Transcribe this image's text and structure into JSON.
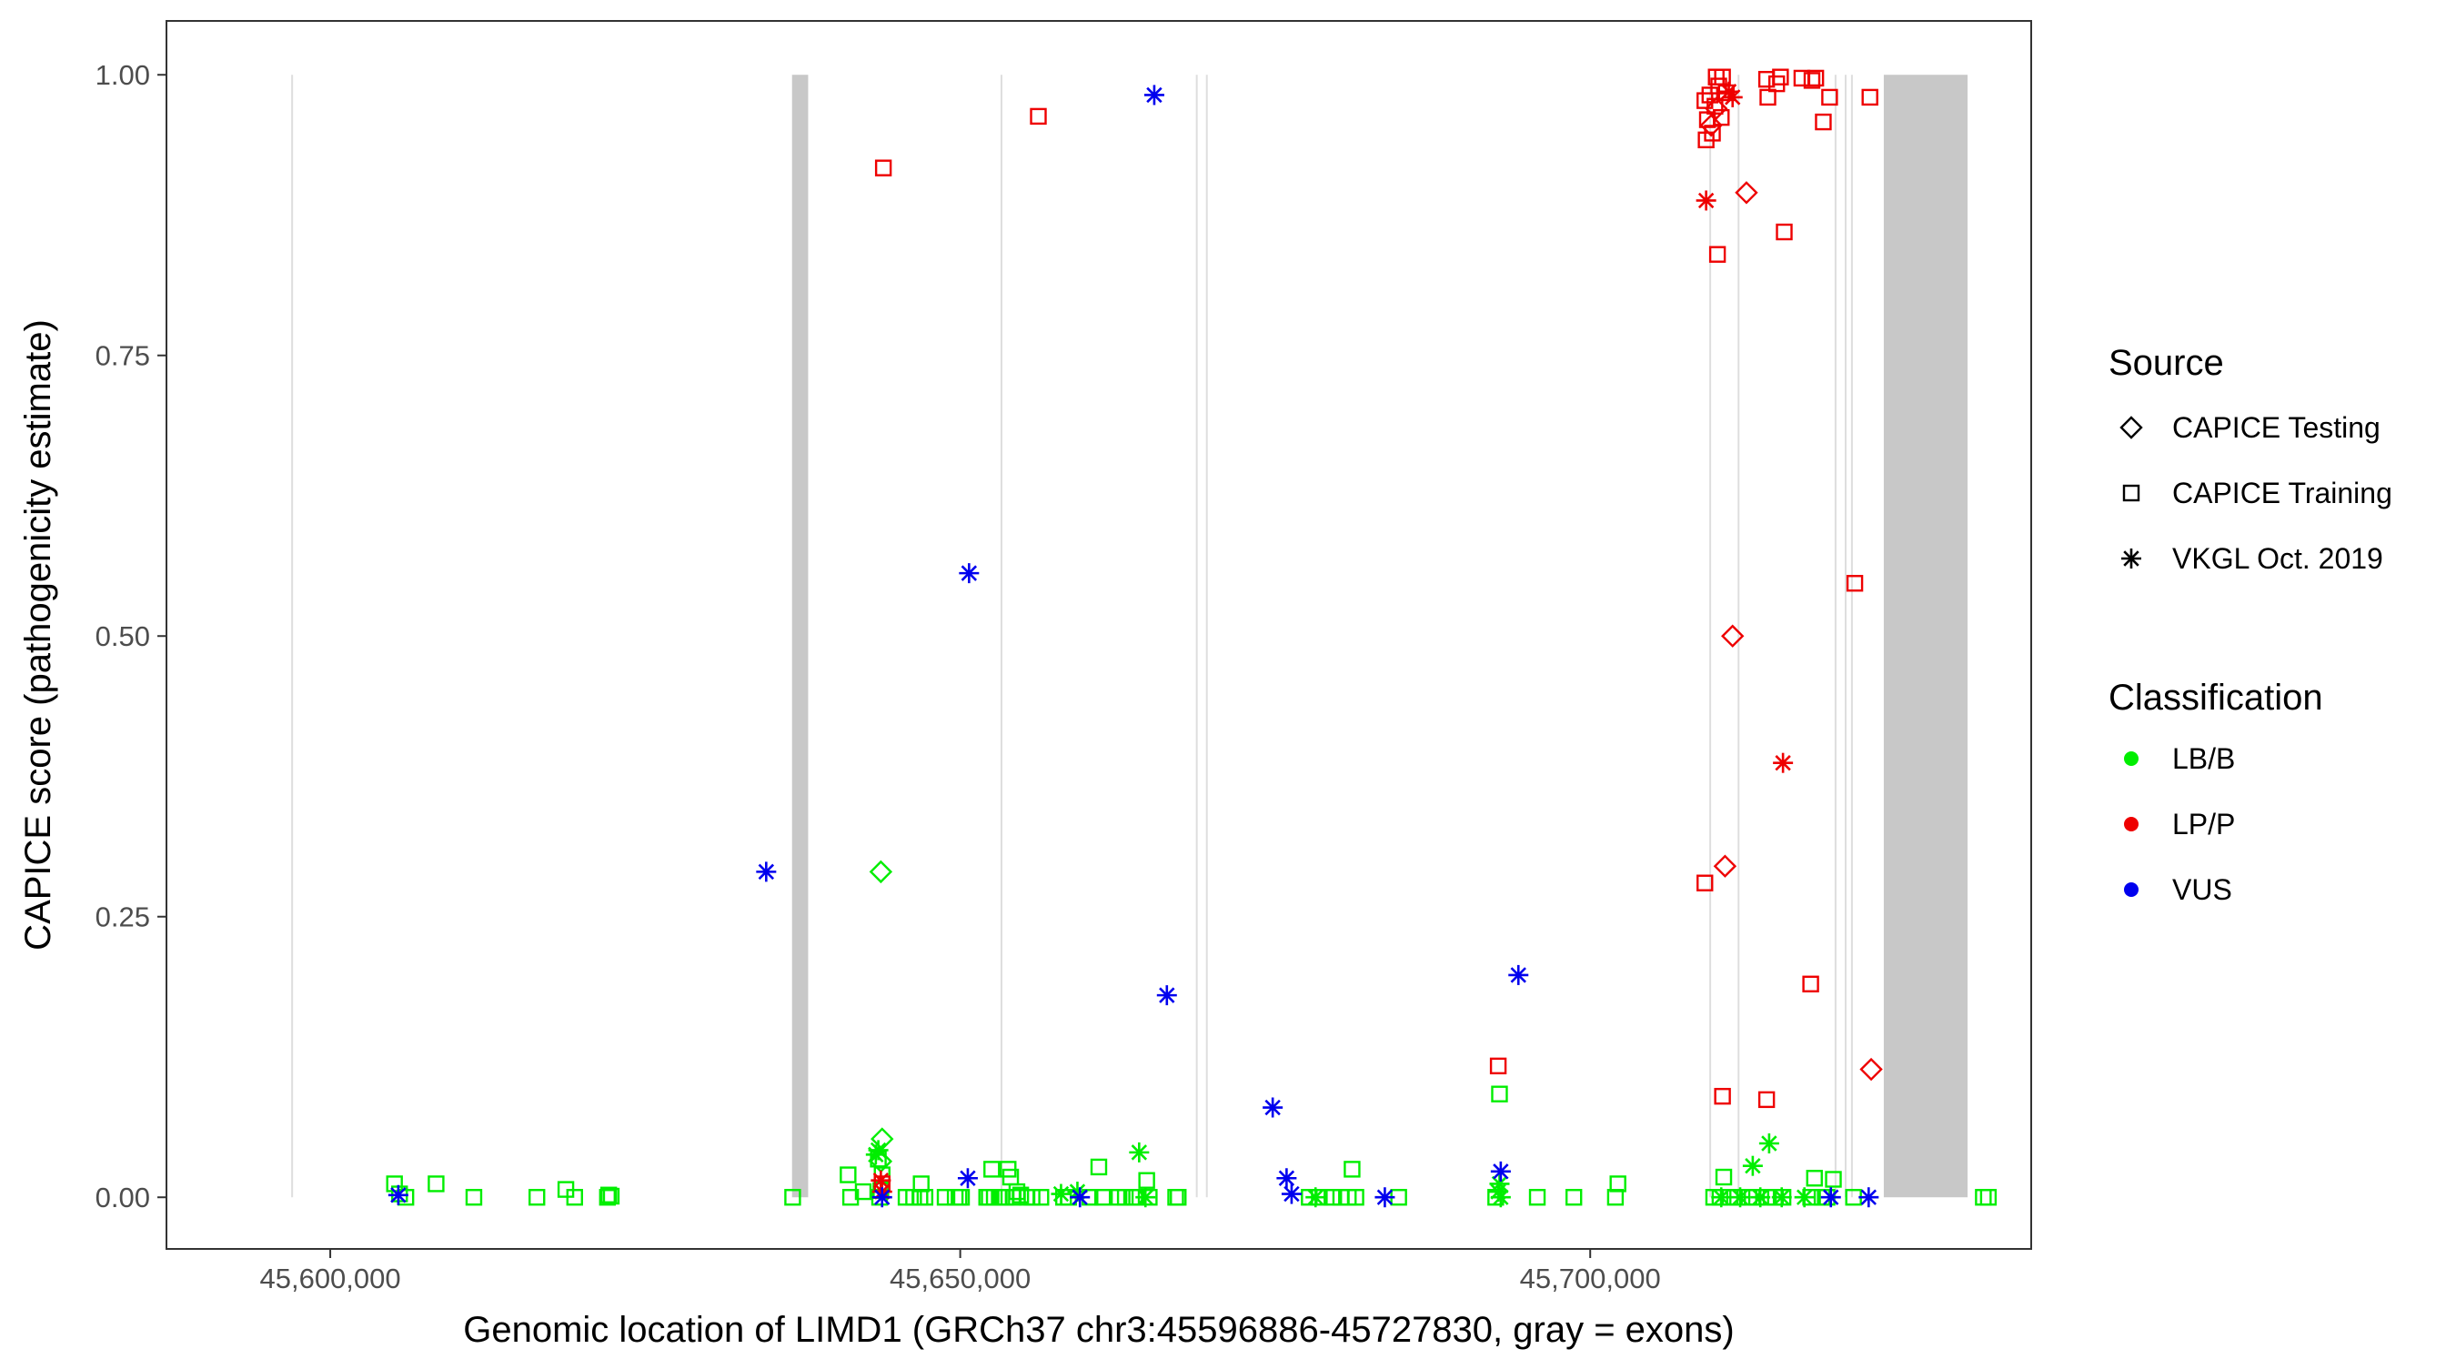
{
  "chart_data": {
    "type": "scatter",
    "xlabel": "Genomic location of LIMD1 (GRCh37 chr3:45596886-45727830, gray = exons)",
    "ylabel": "CAPICE score (pathogenicity estimate)",
    "xlim": [
      45587000,
      45735000
    ],
    "ylim": [
      -0.046,
      1.048
    ],
    "x_ticks": [
      45600000,
      45650000,
      45700000
    ],
    "x_tick_labels": [
      "45,600,000",
      "45,650,000",
      "45,700,000"
    ],
    "y_ticks": [
      0,
      0.25,
      0.5,
      0.75,
      1.0
    ],
    "y_tick_labels": [
      "0.00",
      "0.25",
      "0.50",
      "0.75",
      "1.00"
    ],
    "grid": false,
    "exons": [
      [
        45596900,
        45596950
      ],
      [
        45636650,
        45637930
      ],
      [
        45653200,
        45653240
      ],
      [
        45668700,
        45668740
      ],
      [
        45669500,
        45669540
      ],
      [
        45709450,
        45709500
      ],
      [
        45711700,
        45711740
      ],
      [
        45719400,
        45719460
      ],
      [
        45720200,
        45720260
      ],
      [
        45720700,
        45720760
      ],
      [
        45723300,
        45729950
      ]
    ],
    "legend": {
      "position": "right",
      "source_title": "Source",
      "source_items": [
        {
          "label": "CAPICE Testing",
          "shape": "diamond"
        },
        {
          "label": "CAPICE Training",
          "shape": "square"
        },
        {
          "label": "VKGL Oct. 2019",
          "shape": "asterisk"
        }
      ],
      "class_title": "Classification",
      "class_items": [
        {
          "label": "LB/B",
          "color": "#00ee00"
        },
        {
          "label": "LP/P",
          "color": "#ee0000"
        },
        {
          "label": "VUS",
          "color": "#0000ee"
        }
      ]
    },
    "colors": {
      "LB/B": "#00ee00",
      "LP/P": "#ee0000",
      "VUS": "#0000ee",
      "exon": "#c8c8c8",
      "axis": "#333333"
    },
    "series": [
      {
        "name": "LB/B CAPICE Training",
        "color": "#00ee00",
        "shape": "square",
        "points": [
          [
            45605100,
            0.012
          ],
          [
            45605500,
            0.003
          ],
          [
            45606000,
            0.0
          ],
          [
            45608400,
            0.012
          ],
          [
            45611400,
            0.0
          ],
          [
            45616400,
            0.0
          ],
          [
            45618700,
            0.007
          ],
          [
            45619400,
            0.0
          ],
          [
            45622000,
            0.0
          ],
          [
            45622100,
            0.002
          ],
          [
            45622300,
            0.001
          ],
          [
            45636700,
            0.0
          ],
          [
            45641100,
            0.02
          ],
          [
            45641300,
            0.0
          ],
          [
            45642300,
            0.005
          ],
          [
            45643500,
            0.034
          ],
          [
            45643600,
            0.0
          ],
          [
            45643800,
            0.02
          ],
          [
            45643700,
            0.006
          ],
          [
            45645700,
            0.0
          ],
          [
            45646300,
            0.0
          ],
          [
            45646800,
            0.0
          ],
          [
            45646900,
            0.012
          ],
          [
            45647200,
            0.0
          ],
          [
            45648800,
            0.0
          ],
          [
            45649600,
            0.0
          ],
          [
            45649900,
            0.0
          ],
          [
            45650100,
            0.0
          ],
          [
            45652100,
            0.0
          ],
          [
            45652300,
            0.0
          ],
          [
            45652500,
            0.025
          ],
          [
            45652700,
            0.0
          ],
          [
            45653100,
            0.0
          ],
          [
            45653300,
            0.0
          ],
          [
            45653600,
            0.0
          ],
          [
            45653800,
            0.025
          ],
          [
            45654000,
            0.018
          ],
          [
            45654200,
            0.0
          ],
          [
            45654500,
            0.005
          ],
          [
            45654800,
            0.002
          ],
          [
            45655300,
            0.0
          ],
          [
            45655700,
            0.0
          ],
          [
            45656400,
            0.0
          ],
          [
            45658200,
            0.0
          ],
          [
            45658600,
            0.0
          ],
          [
            45660300,
            0.0
          ],
          [
            45661000,
            0.027
          ],
          [
            45661300,
            0.0
          ],
          [
            45662600,
            0.0
          ],
          [
            45663100,
            0.0
          ],
          [
            45663600,
            0.0
          ],
          [
            45664000,
            0.0
          ],
          [
            45664800,
            0.015
          ],
          [
            45665000,
            0.0
          ],
          [
            45667100,
            0.0
          ],
          [
            45667300,
            0.0
          ],
          [
            45677700,
            0.0
          ],
          [
            45678500,
            0.0
          ],
          [
            45679500,
            0.0
          ],
          [
            45680200,
            0.0
          ],
          [
            45680800,
            0.0
          ],
          [
            45681100,
            0.025
          ],
          [
            45681400,
            0.0
          ],
          [
            45684800,
            0.0
          ],
          [
            45692500,
            0.0
          ],
          [
            45692800,
            0.092
          ],
          [
            45695800,
            0.0
          ],
          [
            45698700,
            0.0
          ],
          [
            45702000,
            0.0
          ],
          [
            45702200,
            0.012
          ],
          [
            45709800,
            0.0
          ],
          [
            45710300,
            0.0
          ],
          [
            45710600,
            0.018
          ],
          [
            45711100,
            0.0
          ],
          [
            45711700,
            0.0
          ],
          [
            45712600,
            0.0
          ],
          [
            45713200,
            0.0
          ],
          [
            45714000,
            0.0
          ],
          [
            45714700,
            0.0
          ],
          [
            45715300,
            0.0
          ],
          [
            45717500,
            0.0
          ],
          [
            45717800,
            0.017
          ],
          [
            45718400,
            0.0
          ],
          [
            45718800,
            0.0
          ],
          [
            45719300,
            0.016
          ],
          [
            45720900,
            0.0
          ],
          [
            45731200,
            0.0
          ],
          [
            45731600,
            0.0
          ]
        ]
      },
      {
        "name": "LB/B CAPICE Testing",
        "color": "#00ee00",
        "shape": "diamond",
        "points": [
          [
            45643700,
            0.29
          ],
          [
            45643800,
            0.052
          ],
          [
            45643700,
            0.032
          ]
        ]
      },
      {
        "name": "LB/B VKGL Oct. 2019",
        "color": "#00ee00",
        "shape": "asterisk",
        "points": [
          [
            45643500,
            0.042
          ],
          [
            45643300,
            0.038
          ],
          [
            45659300,
            0.005
          ],
          [
            45658000,
            0.003
          ],
          [
            45664200,
            0.04
          ],
          [
            45664700,
            0.0
          ],
          [
            45678200,
            0.0
          ],
          [
            45692700,
            0.005
          ],
          [
            45692800,
            0.012
          ],
          [
            45692900,
            0.0
          ],
          [
            45710400,
            0.0
          ],
          [
            45711900,
            0.0
          ],
          [
            45712900,
            0.028
          ],
          [
            45713500,
            0.0
          ],
          [
            45714200,
            0.048
          ],
          [
            45715200,
            0.0
          ],
          [
            45717000,
            0.0
          ]
        ]
      },
      {
        "name": "LP/P CAPICE Training",
        "color": "#ee0000",
        "shape": "square",
        "points": [
          [
            45643900,
            0.917
          ],
          [
            45643800,
            0.012
          ],
          [
            45656200,
            0.963
          ],
          [
            45692700,
            0.117
          ],
          [
            45709100,
            0.977
          ],
          [
            45709200,
            0.942
          ],
          [
            45709300,
            0.96
          ],
          [
            45709500,
            0.982
          ],
          [
            45709700,
            0.948
          ],
          [
            45709900,
            0.972
          ],
          [
            45710000,
            0.998
          ],
          [
            45710200,
            0.99
          ],
          [
            45710400,
            0.962
          ],
          [
            45710500,
            0.998
          ],
          [
            45710800,
            0.984
          ],
          [
            45710100,
            0.84
          ],
          [
            45709100,
            0.28
          ],
          [
            45710500,
            0.09
          ],
          [
            45714000,
            0.996
          ],
          [
            45714100,
            0.98
          ],
          [
            45714800,
            0.992
          ],
          [
            45715100,
            0.998
          ],
          [
            45715400,
            0.86
          ],
          [
            45716800,
            0.997
          ],
          [
            45717600,
            0.995
          ],
          [
            45717900,
            0.997
          ],
          [
            45718500,
            0.958
          ],
          [
            45719000,
            0.98
          ],
          [
            45717500,
            0.19
          ],
          [
            45714000,
            0.087
          ],
          [
            45721000,
            0.547
          ],
          [
            45722200,
            0.98
          ]
        ]
      },
      {
        "name": "LP/P CAPICE Testing",
        "color": "#ee0000",
        "shape": "diamond",
        "points": [
          [
            45709600,
            0.955
          ],
          [
            45710000,
            0.97
          ],
          [
            45712400,
            0.895
          ],
          [
            45711300,
            0.5
          ],
          [
            45710700,
            0.295
          ],
          [
            45722300,
            0.114
          ]
        ]
      },
      {
        "name": "LP/P VKGL Oct. 2019",
        "color": "#ee0000",
        "shape": "asterisk",
        "points": [
          [
            45709200,
            0.888
          ],
          [
            45711000,
            0.985
          ],
          [
            45711300,
            0.98
          ],
          [
            45715300,
            0.387
          ],
          [
            45643700,
            0.015
          ],
          [
            45643800,
            0.005
          ]
        ]
      },
      {
        "name": "VUS VKGL Oct. 2019",
        "color": "#0000ee",
        "shape": "asterisk",
        "points": [
          [
            45605400,
            0.002
          ],
          [
            45634600,
            0.29
          ],
          [
            45643800,
            0.0
          ],
          [
            45650700,
            0.556
          ],
          [
            45650600,
            0.017
          ],
          [
            45659500,
            0.0
          ],
          [
            45665400,
            0.982
          ],
          [
            45666400,
            0.18
          ],
          [
            45674800,
            0.08
          ],
          [
            45675900,
            0.017
          ],
          [
            45676300,
            0.003
          ],
          [
            45683700,
            0.0
          ],
          [
            45692900,
            0.023
          ],
          [
            45694300,
            0.198
          ],
          [
            45719100,
            0.0
          ],
          [
            45722100,
            0.0
          ]
        ]
      }
    ]
  }
}
